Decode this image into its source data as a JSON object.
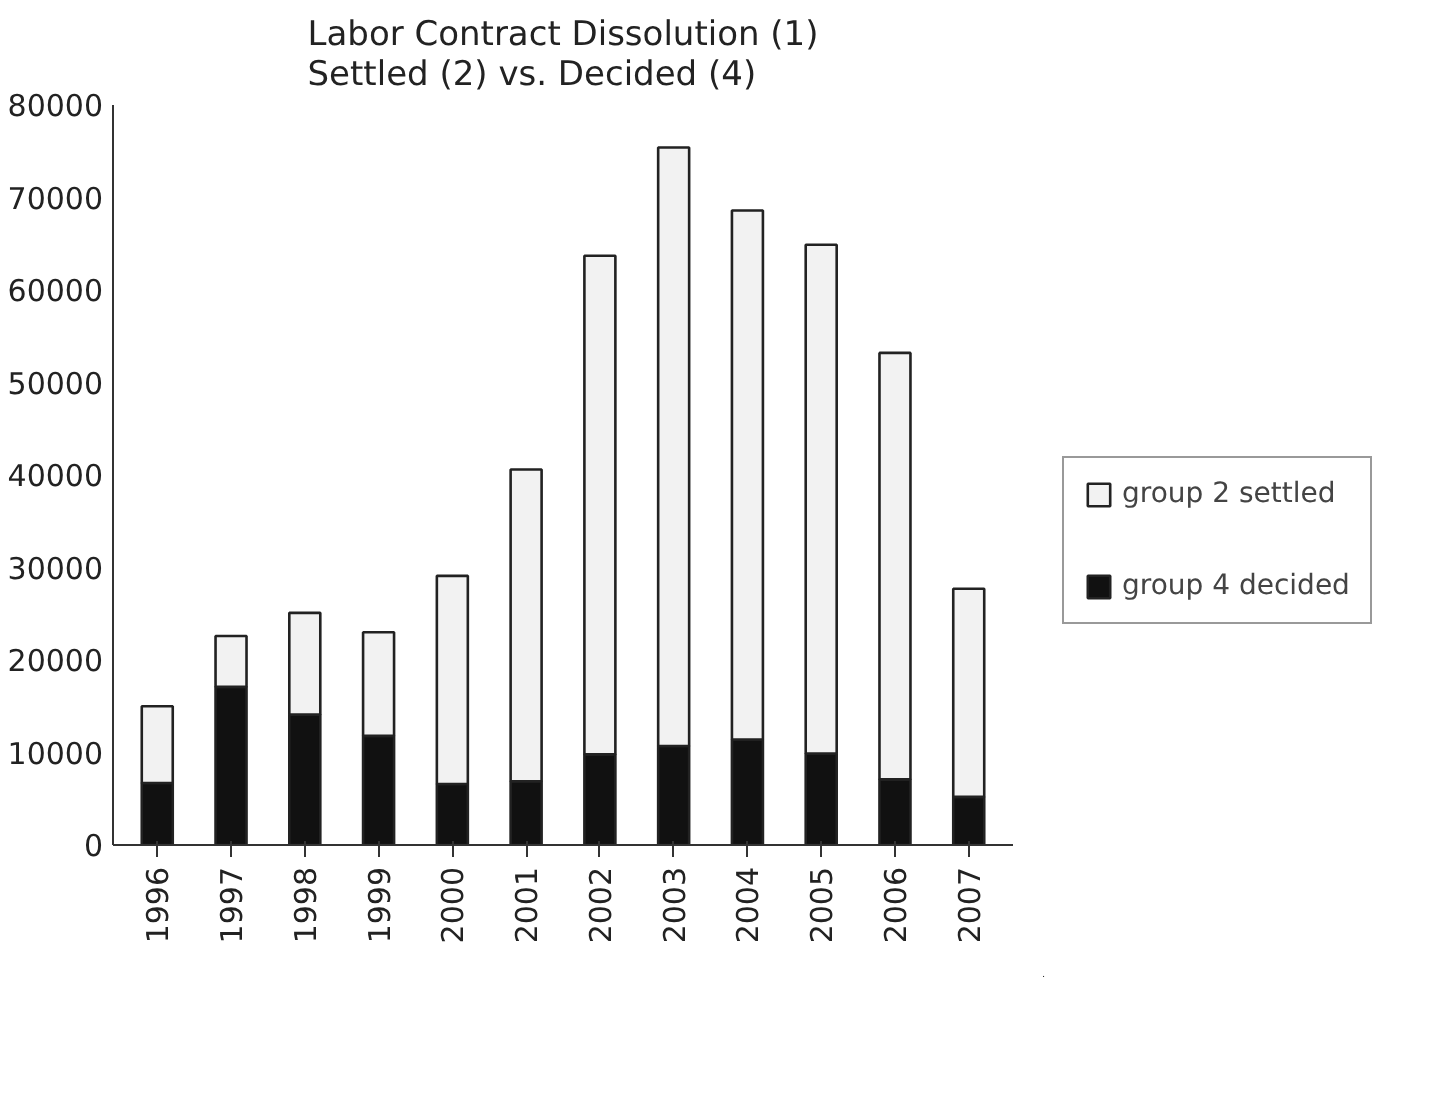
{
  "chart_data": {
    "type": "bar",
    "title": "Labor Contract Dissolution (1)\nSettled (2) vs. Decided (4)",
    "categories": [
      "1996",
      "1997",
      "1998",
      "1999",
      "2000",
      "2001",
      "2002",
      "2003",
      "2004",
      "2005",
      "2006",
      "2007"
    ],
    "stacked": true,
    "series": [
      {
        "name": "group 4 decided",
        "color": "#111111",
        "values": [
          6700,
          17100,
          14100,
          11800,
          6600,
          6900,
          9800,
          10700,
          11400,
          9900,
          7100,
          5200
        ]
      },
      {
        "name": "group 2 settled",
        "color": "#f2f2f2",
        "values": [
          8300,
          5500,
          11000,
          11200,
          22500,
          33700,
          53900,
          64700,
          57200,
          55000,
          46100,
          22500
        ]
      }
    ],
    "ylim": [
      0,
      80000
    ],
    "yticks": [
      0,
      10000,
      20000,
      30000,
      40000,
      50000,
      60000,
      70000,
      80000
    ],
    "grid": false,
    "legend": "right"
  }
}
